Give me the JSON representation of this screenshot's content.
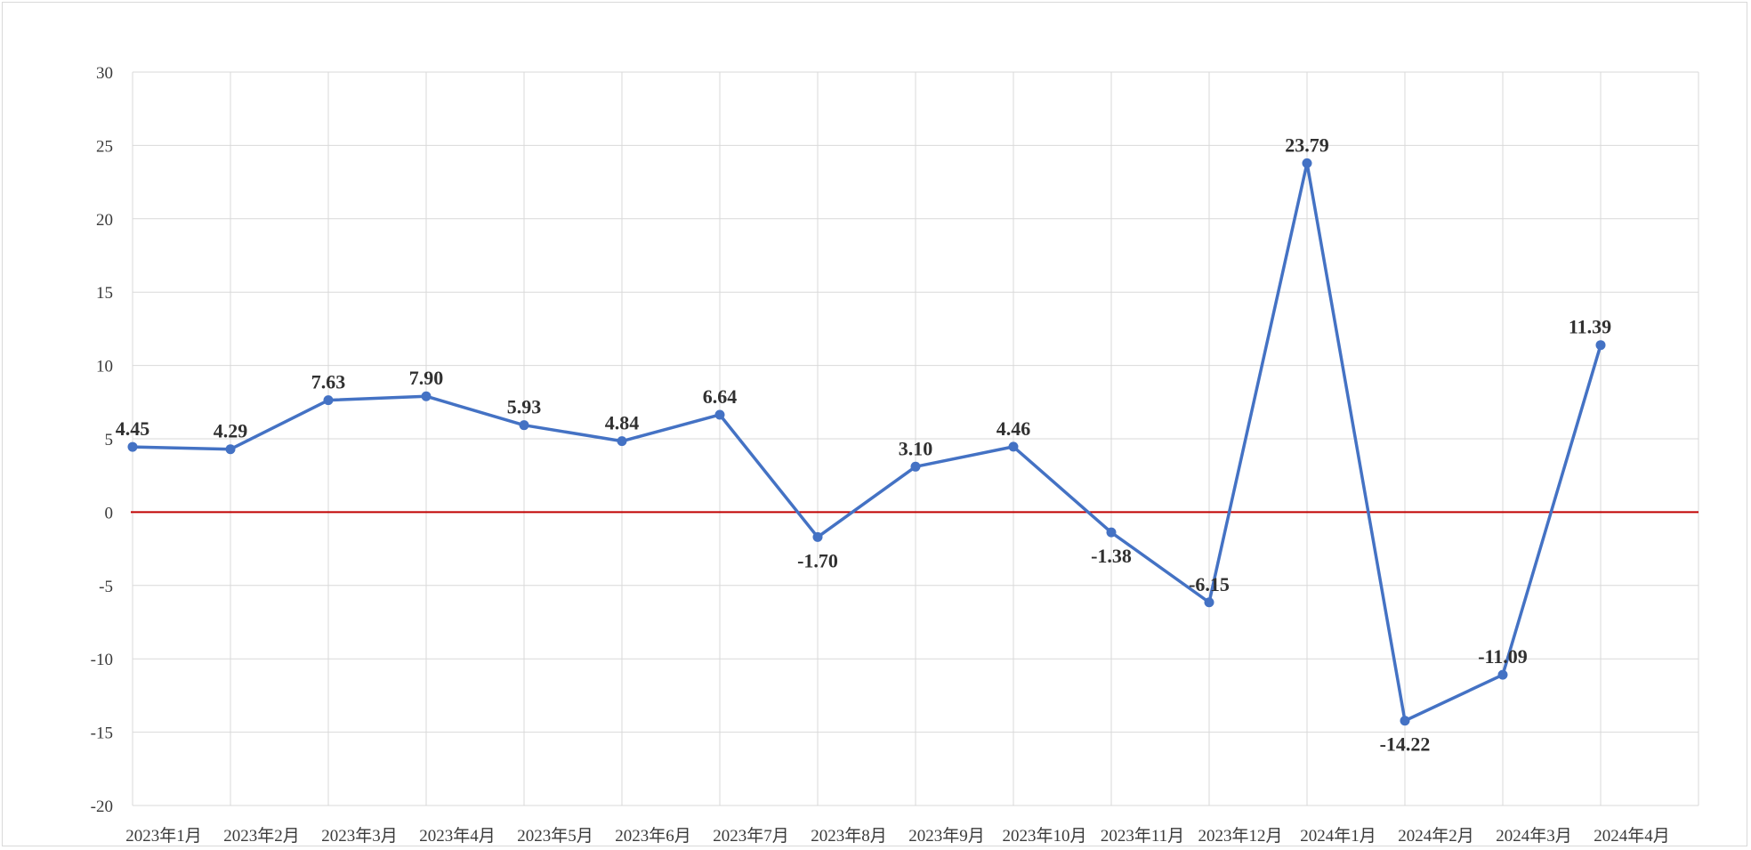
{
  "chart_data": {
    "type": "line",
    "title": "",
    "xlabel": "",
    "ylabel": "",
    "categories": [
      "2023年1月",
      "2023年2月",
      "2023年3月",
      "2023年4月",
      "2023年5月",
      "2023年6月",
      "2023年7月",
      "2023年8月",
      "2023年9月",
      "2023年10月",
      "2023年11月",
      "2023年12月",
      "2024年1月",
      "2024年2月",
      "2024年3月",
      "2024年4月"
    ],
    "series": [
      {
        "values": [
          4.45,
          4.29,
          7.63,
          7.9,
          5.93,
          4.84,
          6.64,
          -1.7,
          3.1,
          4.46,
          -1.38,
          -6.15,
          23.79,
          -14.22,
          -11.09,
          11.39
        ],
        "labels": [
          "4.45",
          "4.29",
          "7.63",
          "7.90",
          "5.93",
          "4.84",
          "6.64",
          "-1.70",
          "3.10",
          "4.46",
          "-1.38",
          "-6.15",
          "23.79",
          "-14.22",
          "-11.09",
          "11.39"
        ],
        "color": "#4472c4"
      }
    ],
    "ylim": [
      -20,
      30
    ],
    "yticks": [
      30,
      25,
      20,
      15,
      10,
      5,
      0,
      -5,
      -10,
      -15,
      -20
    ],
    "reference_line": {
      "y": 0,
      "color": "#c00000"
    },
    "grid": true,
    "legend": "none"
  }
}
